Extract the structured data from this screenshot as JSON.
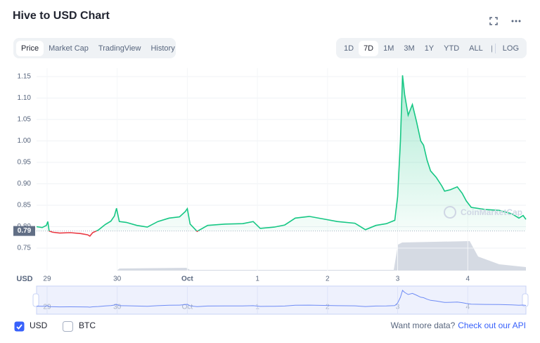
{
  "header": {
    "title": "Hive to USD Chart"
  },
  "tabs": [
    "Price",
    "Market Cap",
    "TradingView",
    "History"
  ],
  "ranges": [
    "1D",
    "7D",
    "1M",
    "3M",
    "1Y",
    "YTD",
    "ALL"
  ],
  "log_button": "LOG",
  "chart_data": {
    "type": "line",
    "y_label": "USD",
    "x": [
      -0.15,
      -0.07,
      -0.01,
      0.01,
      0.03,
      0.08,
      0.18,
      0.33,
      0.48,
      0.58,
      0.61,
      0.65,
      0.73,
      0.83,
      0.91,
      0.96,
      0.99,
      1.03,
      1.13,
      1.28,
      1.43,
      1.58,
      1.74,
      1.89,
      1.97,
      2.0,
      2.04,
      2.14,
      2.29,
      2.54,
      2.79,
      2.94,
      3.04,
      3.24,
      3.39,
      3.54,
      3.74,
      3.94,
      4.14,
      4.39,
      4.54,
      4.69,
      4.84,
      4.96,
      5.0,
      5.04,
      5.07,
      5.1,
      5.15,
      5.21,
      5.27,
      5.33,
      5.37,
      5.42,
      5.47,
      5.55,
      5.63,
      5.67,
      5.75,
      5.85,
      5.92,
      5.98,
      6.05,
      6.25,
      6.45,
      6.63,
      6.73,
      6.79,
      6.83
    ],
    "values": [
      0.8,
      0.798,
      0.803,
      0.812,
      0.79,
      0.787,
      0.785,
      0.786,
      0.784,
      0.781,
      0.778,
      0.786,
      0.792,
      0.805,
      0.813,
      0.825,
      0.843,
      0.812,
      0.81,
      0.803,
      0.799,
      0.812,
      0.82,
      0.823,
      0.835,
      0.842,
      0.806,
      0.789,
      0.803,
      0.806,
      0.807,
      0.812,
      0.796,
      0.799,
      0.804,
      0.82,
      0.824,
      0.818,
      0.812,
      0.808,
      0.793,
      0.803,
      0.807,
      0.815,
      0.87,
      1.0,
      1.153,
      1.108,
      1.06,
      1.085,
      1.045,
      1.0,
      0.99,
      0.955,
      0.93,
      0.915,
      0.895,
      0.883,
      0.886,
      0.893,
      0.878,
      0.86,
      0.845,
      0.84,
      0.838,
      0.83,
      0.82,
      0.826,
      0.817
    ],
    "color": "#16c784",
    "below_color": "#ea3943",
    "reference": {
      "value": 0.79,
      "label": "0.79"
    },
    "xlim": [
      -0.15,
      6.83
    ],
    "xticks": [
      {
        "value": 0,
        "label": "29"
      },
      {
        "value": 1,
        "label": "30"
      },
      {
        "value": 2,
        "label": "Oct"
      },
      {
        "value": 3,
        "label": "1"
      },
      {
        "value": 4,
        "label": "2"
      },
      {
        "value": 5,
        "label": "3"
      },
      {
        "value": 6,
        "label": "4"
      }
    ],
    "ylim": [
      0.7,
      1.17
    ],
    "yticks": [
      0.75,
      {
        "value": 0.8,
        "label": "0.80"
      },
      0.85,
      {
        "value": 0.9,
        "label": "0.90"
      },
      0.95,
      {
        "value": 1.0,
        "label": "1.00"
      },
      1.05,
      {
        "value": 1.1,
        "label": "1.10"
      },
      1.15
    ],
    "grid": true,
    "watermark": "CoinMarketCap"
  },
  "footer": {
    "options": [
      "USD",
      "BTC"
    ],
    "prompt": "Want more data?",
    "link": "Check out our API"
  }
}
